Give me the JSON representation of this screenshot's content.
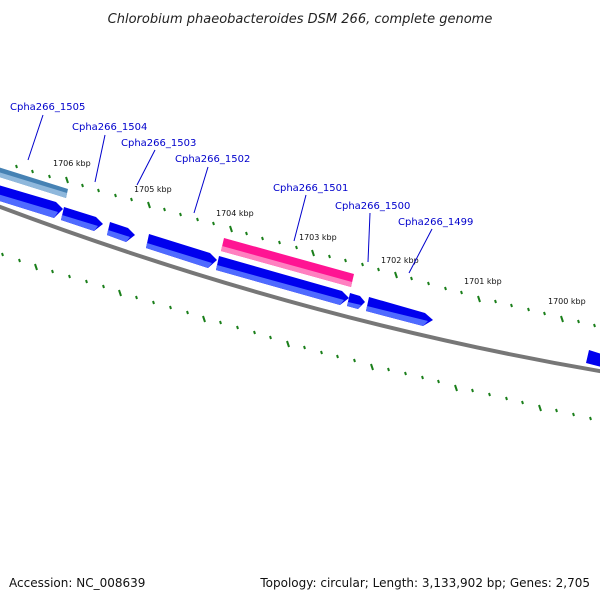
{
  "title": "Chlorobium phaeobacteroides DSM 266, complete genome",
  "footer": {
    "accession": "Accession: NC_008639",
    "summary": "Topology: circular; Length: 3,133,902 bp; Genes: 2,705"
  },
  "colors": {
    "cds": "#0000ee",
    "cds_light": "#4f6bff",
    "selected": "#ff1493",
    "selected_light": "#ff80c0",
    "steelblue": "#4682b4",
    "steelblue_light": "#8fb8dc",
    "backbone": "#777777",
    "tick": "#1a7f1a",
    "label": "#0000cc"
  },
  "gene_labels": [
    "Cpha266_1505",
    "Cpha266_1504",
    "Cpha266_1503",
    "Cpha266_1502",
    "Cpha266_1501",
    "Cpha266_1500",
    "Cpha266_1499"
  ],
  "ruler_labels": [
    "1706 kbp",
    "1705 kbp",
    "1704 kbp",
    "1703 kbp",
    "1702 kbp",
    "1701 kbp",
    "1700 kbp"
  ]
}
